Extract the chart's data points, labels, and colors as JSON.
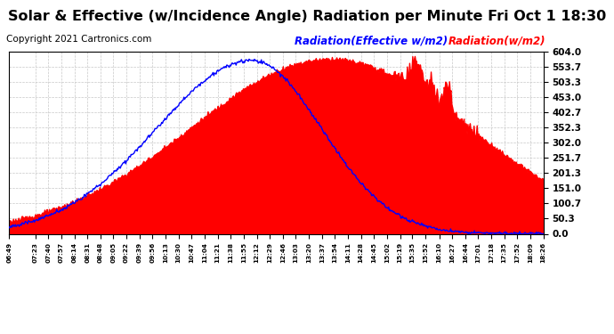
{
  "title": "Solar & Effective (w/Incidence Angle) Radiation per Minute Fri Oct 1 18:30",
  "copyright": "Copyright 2021 Cartronics.com",
  "legend_effective": "Radiation(Effective w/m2)",
  "legend_radiation": "Radiation(w/m2)",
  "ymin": 0.0,
  "ymax": 604.0,
  "yticks": [
    0.0,
    50.3,
    100.7,
    151.0,
    201.3,
    251.7,
    302.0,
    352.3,
    402.7,
    453.0,
    503.3,
    553.7,
    604.0
  ],
  "bg_color": "#ffffff",
  "plot_bg_color": "#ffffff",
  "grid_color": "#c8c8c8",
  "fill_color": "#ff0000",
  "line_color_effective": "#0000ff",
  "line_color_radiation": "#ff0000",
  "title_fontsize": 11.5,
  "copyright_fontsize": 7.5,
  "legend_fontsize": 8.5
}
